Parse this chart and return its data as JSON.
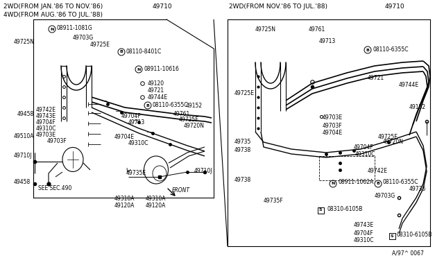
{
  "bg_color": "#ffffff",
  "line_color": "#000000",
  "text_color": "#000000",
  "fig_width": 6.4,
  "fig_height": 3.72,
  "dpi": 100,
  "left_header_line1": "2WD(FROM JAN.'86 TO NOV.'86)",
  "left_header_line2": "4WD(FROM AUG.'86 TO JUL.'88)",
  "right_header": "2WD(FROM NOV.'86 TO JUL.'88)",
  "footer_part": "A/97^ 0067"
}
